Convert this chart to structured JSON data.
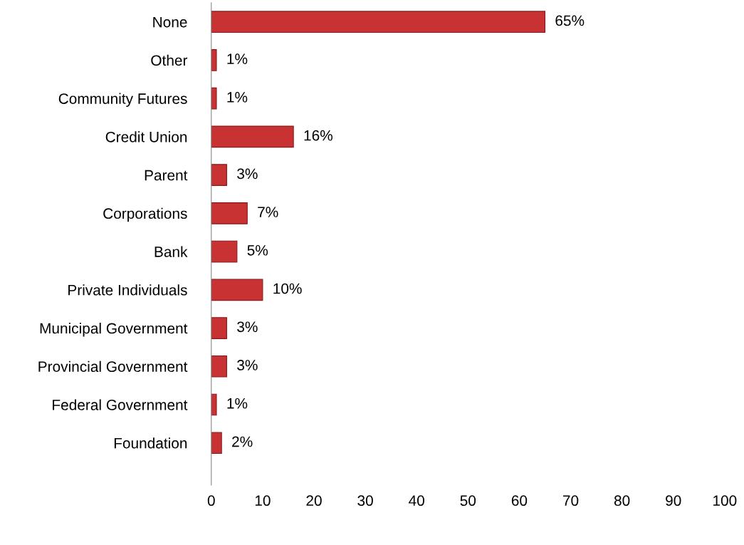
{
  "chart_data": {
    "type": "bar",
    "orientation": "horizontal",
    "categories": [
      "None",
      "Other",
      "Community Futures",
      "Credit Union",
      "Parent",
      "Corporations",
      "Bank",
      "Private Individuals",
      "Municipal Government",
      "Provincial Government",
      "Federal Government",
      "Foundation"
    ],
    "values": [
      65,
      1,
      1,
      16,
      3,
      7,
      5,
      10,
      3,
      3,
      1,
      2
    ],
    "value_labels": [
      "65%",
      "1%",
      "1%",
      "16%",
      "3%",
      "7%",
      "5%",
      "10%",
      "3%",
      "3%",
      "1%",
      "2%"
    ],
    "color": "#c83232",
    "xlim": [
      0,
      100
    ],
    "xticks": [
      0,
      10,
      20,
      30,
      40,
      50,
      60,
      70,
      80,
      90,
      100
    ],
    "grid": false,
    "legend": false
  }
}
